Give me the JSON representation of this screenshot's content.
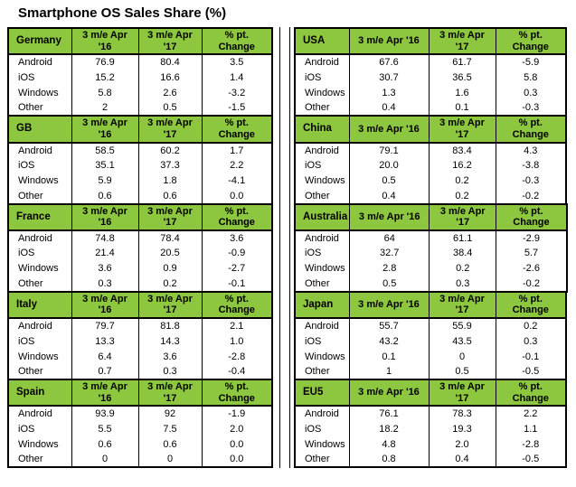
{
  "title": "Smartphone OS Sales Share (%)",
  "colors": {
    "header_green": "#8dc63f",
    "border": "#000000",
    "background": "#ffffff",
    "text": "#000000"
  },
  "chart_data": {
    "type": "table",
    "title": "Smartphone OS Sales Share (%)",
    "os_labels": [
      "Android",
      "iOS",
      "Windows",
      "Other"
    ],
    "column_headers": [
      "3 m/e Apr '16",
      "3 m/e Apr '17",
      "% pt. Change"
    ],
    "header_display": {
      "left": [
        "3 m/e Apr\n'16",
        "3 m/e Apr\n'17",
        "% pt.\nChange"
      ],
      "right": [
        "3 m/e Apr '16",
        "3 m/e Apr\n'17",
        "% pt.\nChange"
      ]
    },
    "tables": [
      {
        "region": "Germany",
        "side": "left",
        "apr16": [
          "76.9",
          "15.2",
          "5.8",
          "2"
        ],
        "apr17": [
          "80.4",
          "16.6",
          "2.6",
          "0.5"
        ],
        "change": [
          "3.5",
          "1.4",
          "-3.2",
          "-1.5"
        ]
      },
      {
        "region": "GB",
        "side": "left",
        "apr16": [
          "58.5",
          "35.1",
          "5.9",
          "0.6"
        ],
        "apr17": [
          "60.2",
          "37.3",
          "1.8",
          "0.6"
        ],
        "change": [
          "1.7",
          "2.2",
          "-4.1",
          "0.0"
        ]
      },
      {
        "region": "France",
        "side": "left",
        "apr16": [
          "74.8",
          "21.4",
          "3.6",
          "0.3"
        ],
        "apr17": [
          "78.4",
          "20.5",
          "0.9",
          "0.2"
        ],
        "change": [
          "3.6",
          "-0.9",
          "-2.7",
          "-0.1"
        ]
      },
      {
        "region": "Italy",
        "side": "left",
        "apr16": [
          "79.7",
          "13.3",
          "6.4",
          "0.7"
        ],
        "apr17": [
          "81.8",
          "14.3",
          "3.6",
          "0.3"
        ],
        "change": [
          "2.1",
          "1.0",
          "-2.8",
          "-0.4"
        ]
      },
      {
        "region": "Spain",
        "side": "left",
        "apr16": [
          "93.9",
          "5.5",
          "0.6",
          "0"
        ],
        "apr17": [
          "92",
          "7.5",
          "0.6",
          "0"
        ],
        "change": [
          "-1.9",
          "2.0",
          "0.0",
          "0.0"
        ]
      },
      {
        "region": "USA",
        "side": "right",
        "apr16": [
          "67.6",
          "30.7",
          "1.3",
          "0.4"
        ],
        "apr17": [
          "61.7",
          "36.5",
          "1.6",
          "0.1"
        ],
        "change": [
          "-5.9",
          "5.8",
          "0.3",
          "-0.3"
        ]
      },
      {
        "region": "China",
        "side": "right",
        "apr16": [
          "79.1",
          "20.0",
          "0.5",
          "0.4"
        ],
        "apr17": [
          "83.4",
          "16.2",
          "0.2",
          "0.2"
        ],
        "change": [
          "4.3",
          "-3.8",
          "-0.3",
          "-0.2"
        ]
      },
      {
        "region": "Australia",
        "side": "right",
        "apr16": [
          "64",
          "32.7",
          "2.8",
          "0.5"
        ],
        "apr17": [
          "61.1",
          "38.4",
          "0.2",
          "0.3"
        ],
        "change": [
          "-2.9",
          "5.7",
          "-2.6",
          "-0.2"
        ]
      },
      {
        "region": "Japan",
        "side": "right",
        "apr16": [
          "55.7",
          "43.2",
          "0.1",
          "1"
        ],
        "apr17": [
          "55.9",
          "43.5",
          "0",
          "0.5"
        ],
        "change": [
          "0.2",
          "0.3",
          "-0.1",
          "-0.5"
        ]
      },
      {
        "region": "EU5",
        "side": "right",
        "apr16": [
          "76.1",
          "18.2",
          "4.8",
          "0.8"
        ],
        "apr17": [
          "78.3",
          "19.3",
          "2.0",
          "0.4"
        ],
        "change": [
          "2.2",
          "1.1",
          "-2.8",
          "-0.5"
        ]
      }
    ]
  }
}
